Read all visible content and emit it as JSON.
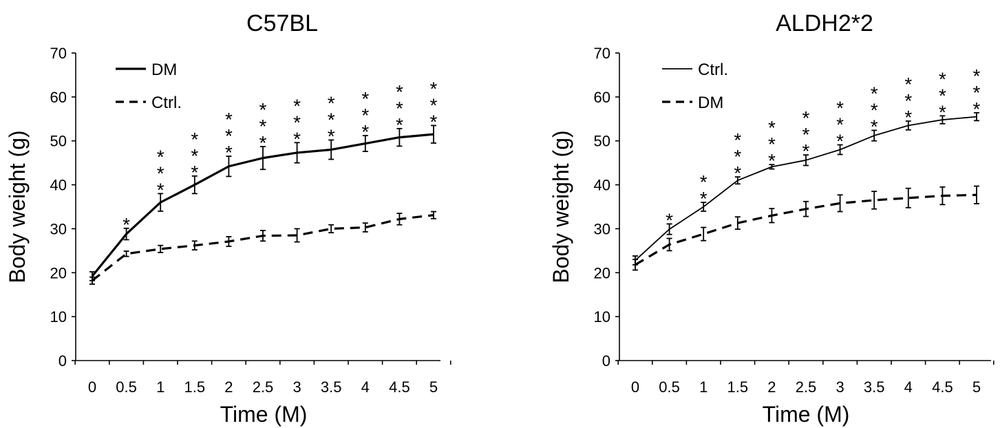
{
  "chart_data": [
    {
      "type": "line",
      "title": "C57BL",
      "xlabel": "Time (M)",
      "ylabel": "Body weight (g)",
      "x": [
        "0",
        "0.5",
        "1",
        "1.5",
        "2",
        "2.5",
        "3",
        "3.5",
        "4",
        "4.5",
        "5"
      ],
      "yticks": [
        "0",
        "10",
        "20",
        "30",
        "40",
        "50",
        "60",
        "70"
      ],
      "ylim": [
        0,
        70
      ],
      "legend_position": "top-left",
      "series": [
        {
          "name": "DM",
          "style": "solid-thick",
          "values": [
            19.2,
            28.8,
            36.0,
            40.0,
            44.2,
            46.1,
            47.3,
            48.0,
            49.4,
            50.8,
            51.5
          ],
          "errors": [
            1.0,
            1.3,
            2.0,
            2.0,
            2.3,
            2.6,
            2.3,
            2.2,
            1.8,
            2.0,
            2.0
          ]
        },
        {
          "name": "Ctrl.",
          "style": "dashed-thick",
          "values": [
            18.2,
            24.3,
            25.4,
            26.2,
            27.1,
            28.4,
            28.5,
            30.0,
            30.3,
            32.2,
            33.1
          ],
          "errors": [
            0.8,
            0.6,
            0.8,
            1.0,
            1.1,
            1.2,
            1.5,
            0.9,
            1.0,
            1.3,
            0.8
          ]
        }
      ],
      "significance": [
        "",
        "*",
        "***",
        "***",
        "***",
        "***",
        "***",
        "***",
        "***",
        "***",
        "***"
      ]
    },
    {
      "type": "line",
      "title": "ALDH2*2",
      "xlabel": "Time (M)",
      "ylabel": "Body weight (g)",
      "x": [
        "0",
        "0.5",
        "1",
        "1.5",
        "2",
        "2.5",
        "3",
        "3.5",
        "4",
        "4.5",
        "5"
      ],
      "yticks": [
        "0",
        "10",
        "20",
        "30",
        "40",
        "50",
        "60",
        "70"
      ],
      "ylim": [
        0,
        70
      ],
      "legend_position": "top-left",
      "series": [
        {
          "name": "Ctrl.",
          "style": "solid-thin",
          "values": [
            22.8,
            29.9,
            35.0,
            41.0,
            44.1,
            45.6,
            48.0,
            51.2,
            53.5,
            54.8,
            55.5
          ],
          "errors": [
            1.0,
            1.2,
            1.0,
            0.8,
            0.5,
            1.2,
            1.1,
            1.2,
            1.0,
            0.9,
            0.9
          ]
        },
        {
          "name": "DM",
          "style": "dashed-thick",
          "values": [
            21.8,
            26.4,
            28.8,
            31.3,
            33.0,
            34.5,
            35.8,
            36.5,
            37.0,
            37.5,
            37.7
          ],
          "errors": [
            1.2,
            1.4,
            1.5,
            1.4,
            1.6,
            1.7,
            1.9,
            2.0,
            2.2,
            2.0,
            2.0
          ]
        }
      ],
      "significance": [
        "",
        "*",
        "**",
        "***",
        "***",
        "***",
        "***",
        "***",
        "***",
        "***",
        "***"
      ]
    }
  ]
}
